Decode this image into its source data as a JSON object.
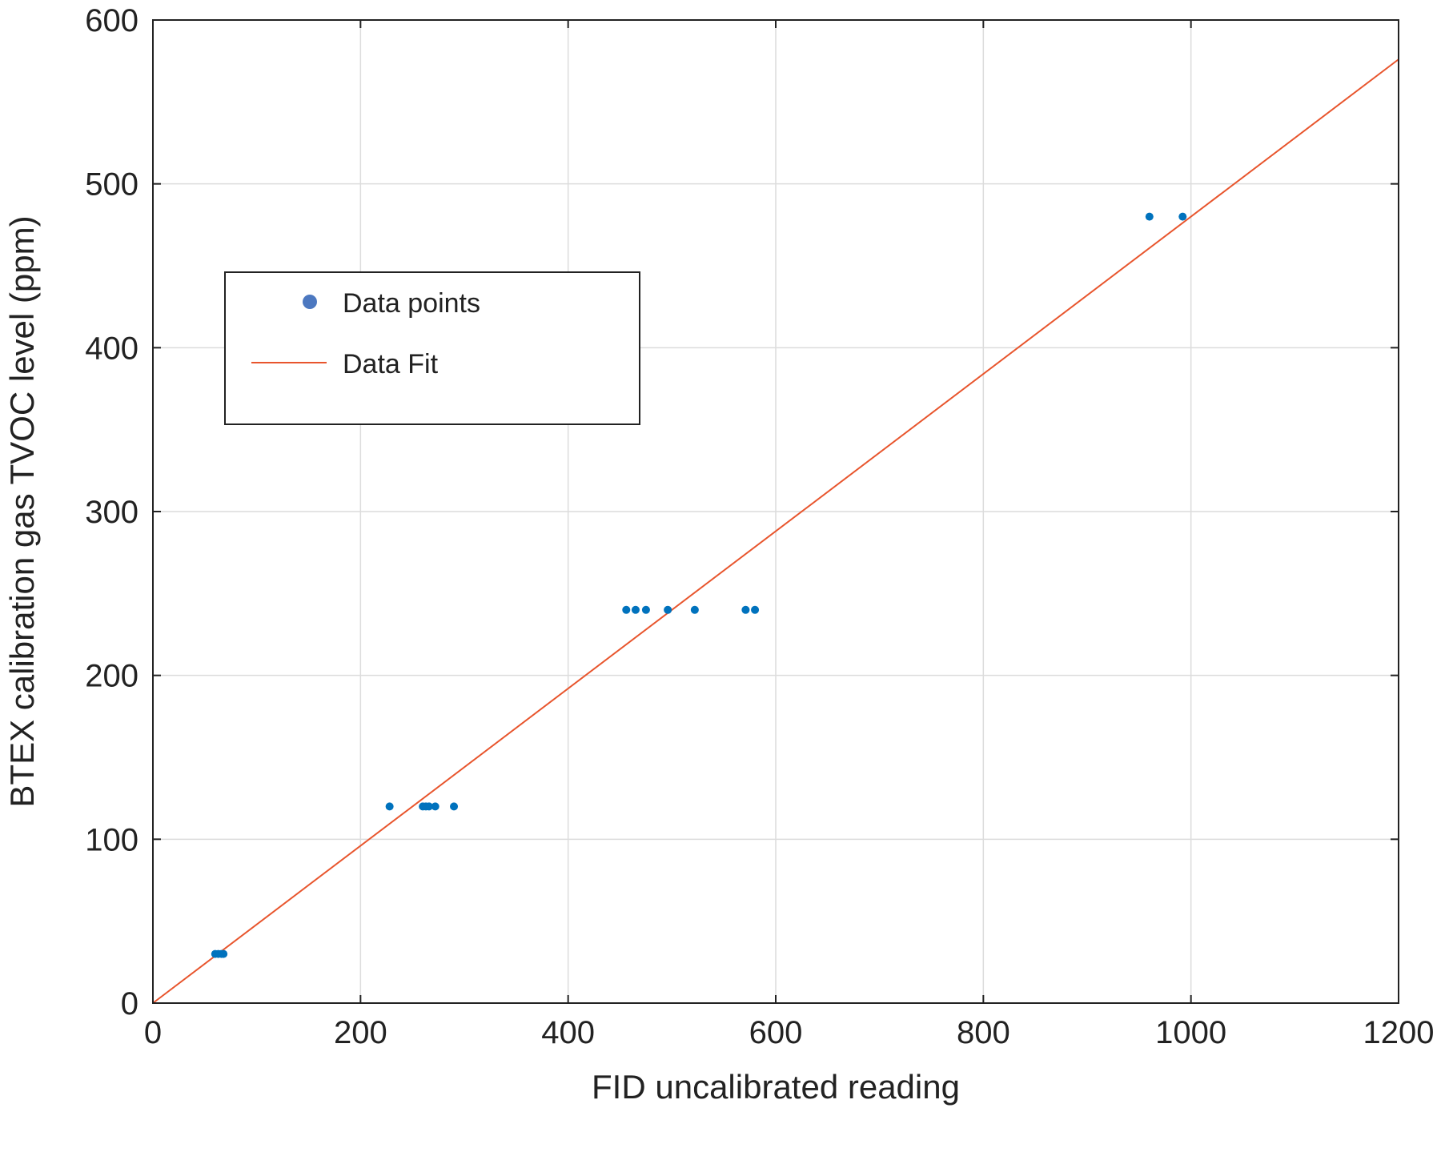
{
  "chart_data": {
    "type": "scatter",
    "title": "",
    "xlabel": "FID uncalibrated reading",
    "ylabel": "BTEX calibration gas TVOC level (ppm)",
    "xlim": [
      0,
      1200
    ],
    "ylim": [
      0,
      600
    ],
    "x_ticks": [
      0,
      200,
      400,
      600,
      800,
      1000,
      1200
    ],
    "y_ticks": [
      0,
      100,
      200,
      300,
      400,
      500,
      600
    ],
    "grid": true,
    "legend_position": "upper-left",
    "series": [
      {
        "name": "Data points",
        "kind": "scatter",
        "color": "#0072BD",
        "legend_color": "#4C78C0",
        "points": [
          [
            60,
            30
          ],
          [
            63,
            30
          ],
          [
            66,
            30
          ],
          [
            68,
            30
          ],
          [
            228,
            120
          ],
          [
            260,
            120
          ],
          [
            263,
            120
          ],
          [
            266,
            120
          ],
          [
            272,
            120
          ],
          [
            290,
            120
          ],
          [
            456,
            240
          ],
          [
            465,
            240
          ],
          [
            475,
            240
          ],
          [
            496,
            240
          ],
          [
            522,
            240
          ],
          [
            571,
            240
          ],
          [
            580,
            240
          ],
          [
            960,
            480
          ],
          [
            992,
            480
          ]
        ]
      },
      {
        "name": "Data Fit",
        "kind": "line",
        "color": "#E8552D",
        "points": [
          [
            0,
            0
          ],
          [
            1200,
            576
          ]
        ]
      }
    ]
  }
}
